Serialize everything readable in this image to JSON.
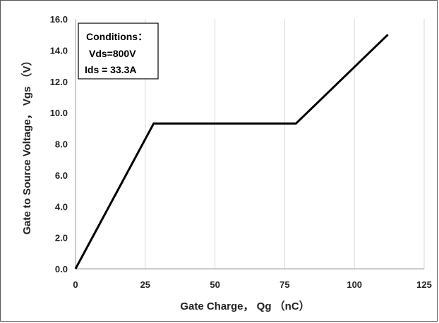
{
  "chart_data": {
    "type": "line",
    "xlabel": "Gate Charge，  Qg （nC）",
    "ylabel": "Gate to Source Voltage，  Vgs （V）",
    "xlim": [
      0,
      125
    ],
    "ylim": [
      0,
      16
    ],
    "x_ticks": [
      "0",
      "25",
      "50",
      "75",
      "100",
      "125"
    ],
    "y_ticks": [
      "0.0",
      "2.0",
      "4.0",
      "6.0",
      "8.0",
      "10.0",
      "12.0",
      "14.0",
      "16.0"
    ],
    "grid": "vertical",
    "annotation": {
      "lines": [
        "Conditions：",
        "Vds=800V",
        "Ids = 33.3A"
      ]
    },
    "series": [
      {
        "color": "#000000",
        "points": [
          [
            0,
            0
          ],
          [
            28,
            9.3
          ],
          [
            79,
            9.3
          ],
          [
            112,
            15
          ]
        ]
      }
    ]
  }
}
